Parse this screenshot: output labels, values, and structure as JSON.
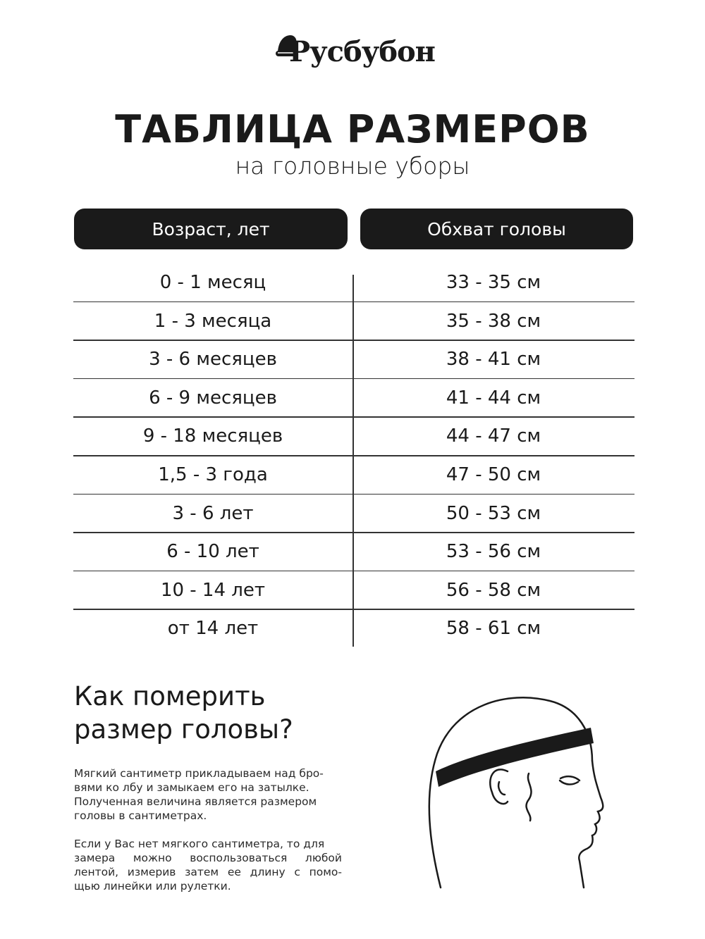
{
  "logo": {
    "text": "Русбубон"
  },
  "title": "ТАБЛИЦА РАЗМЕРОВ",
  "subtitle": "на головные уборы",
  "table": {
    "headers": [
      "Возраст, лет",
      "Обхват головы"
    ],
    "rows": [
      [
        "0 - 1 месяц",
        "33 - 35 см"
      ],
      [
        "1 - 3 месяца",
        "35 - 38 см"
      ],
      [
        "3 - 6 месяцев",
        "38 - 41 см"
      ],
      [
        "6 - 9 месяцев",
        "41 - 44 см"
      ],
      [
        "9 - 18 месяцев",
        "44 - 47 см"
      ],
      [
        "1,5 - 3 года",
        "47 - 50 см"
      ],
      [
        "3 - 6 лет",
        "50 - 53 см"
      ],
      [
        "6 - 10 лет",
        "53 - 56 см"
      ],
      [
        "10 - 14 лет",
        "56 - 58 см"
      ],
      [
        "от 14 лет",
        "58 - 61 см"
      ]
    ]
  },
  "howto": {
    "heading": [
      "Как померить",
      "размер головы?"
    ],
    "paragraph1": [
      "Мягкий сантиметр прикладываем над бро-",
      "вями ко лбу и замыкаем его на затылке.",
      "Полученная величина является размером",
      "головы в сантиметрах."
    ],
    "paragraph2": [
      "Если у Вас нет мягкого сантиметра, то для",
      "замера можно воспользоваться любой",
      "лентой, измерив затем ее длину с помо-",
      "щью линейки или рулетки."
    ]
  }
}
